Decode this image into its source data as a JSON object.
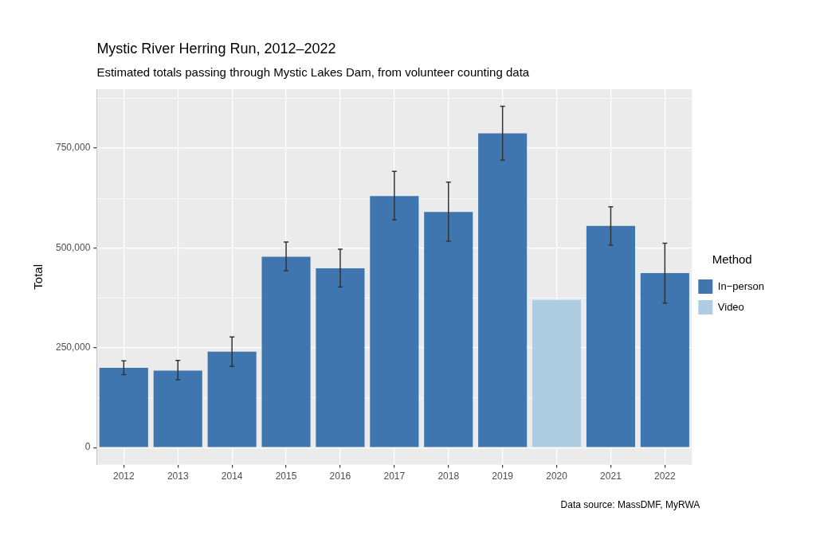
{
  "chart_data": {
    "type": "bar",
    "title": "Mystic River Herring Run, 2012–2022",
    "subtitle": "Estimated totals passing through Mystic Lakes Dam, from volunteer counting data",
    "caption": "Data source: MassDMF, MyRWA",
    "y_label": "Total",
    "categories": [
      "2012",
      "2013",
      "2014",
      "2015",
      "2016",
      "2017",
      "2018",
      "2019",
      "2020",
      "2021",
      "2022"
    ],
    "series": [
      {
        "name": "In−person",
        "color": "#3f76b0",
        "values": [
          200000,
          193000,
          240000,
          478000,
          449000,
          630000,
          590000,
          787000,
          null,
          555000,
          437000
        ],
        "error_low": [
          183000,
          170000,
          203000,
          443000,
          402000,
          570000,
          517000,
          720000,
          null,
          507000,
          362000
        ],
        "error_high": [
          217000,
          218000,
          277000,
          515000,
          497000,
          692000,
          665000,
          855000,
          null,
          603000,
          512000
        ]
      },
      {
        "name": "Video",
        "color": "#aecde1",
        "values": [
          null,
          null,
          null,
          null,
          null,
          null,
          null,
          null,
          370000,
          null,
          null
        ]
      }
    ],
    "ylim": [
      -42750,
      897750
    ],
    "yticks": [
      0,
      {
        "value": 250000,
        "label": "250,000"
      },
      {
        "value": 500000,
        "label": "500,000"
      },
      {
        "value": 750000,
        "label": "750,000"
      }
    ],
    "grid": true,
    "legend": "right",
    "legend_title": "Method"
  }
}
